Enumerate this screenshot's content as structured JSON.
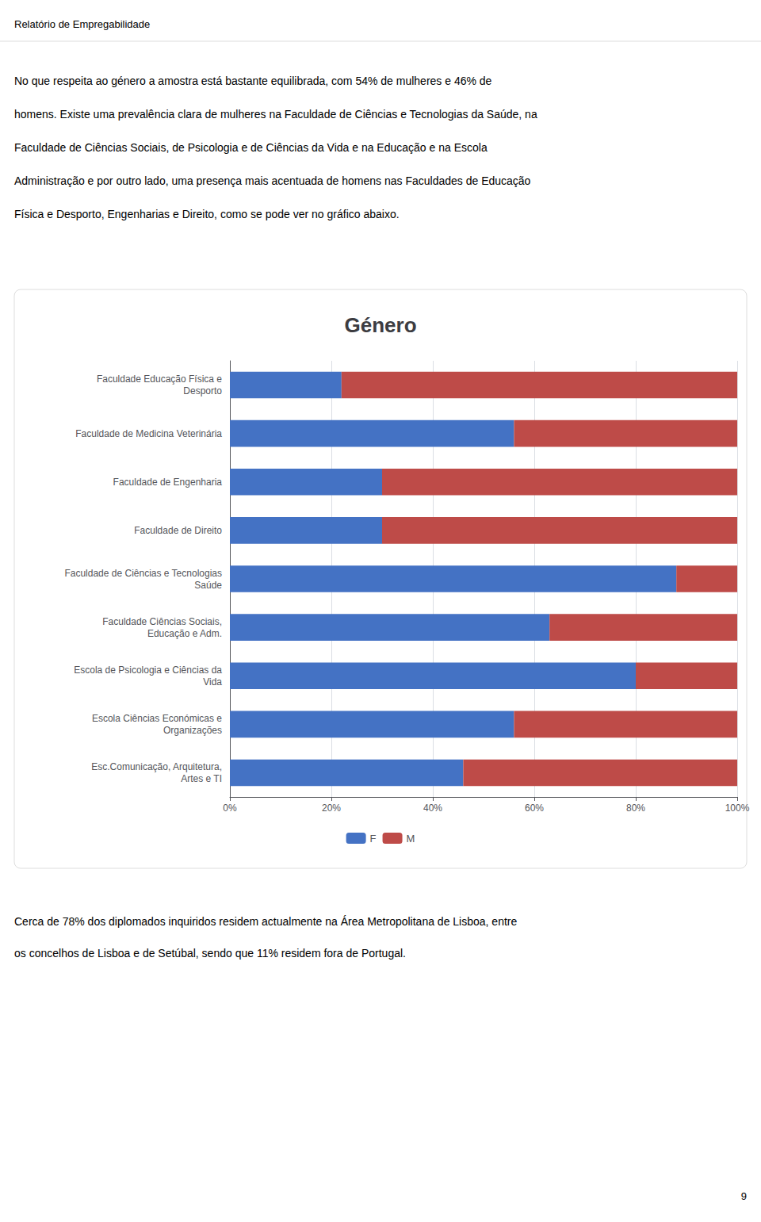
{
  "chart_data": {
    "type": "bar",
    "orientation": "horizontal",
    "stacked": true,
    "title": "Género",
    "categories": [
      "Faculdade Educação Física e\nDesporto",
      "Faculdade de Medicina Veterinária",
      "Faculdade de Engenharia",
      "Faculdade de Direito",
      "Faculdade de Ciências e Tecnologias\nSaúde",
      "Faculdade Ciências Sociais,\nEducação e Adm.",
      "Escola de Psicologia e Ciências da\nVida",
      "Escola Ciências Económicas e\nOrganizações",
      "Esc.Comunicação, Arquitetura,\nArtes e TI"
    ],
    "series": [
      {
        "name": "F",
        "color": "#4472C4",
        "values": [
          0.22,
          0.56,
          0.3,
          0.3,
          0.88,
          0.63,
          0.8,
          0.56,
          0.46
        ]
      },
      {
        "name": "M",
        "color": "#BE4B48",
        "values": [
          0.78,
          0.44,
          0.7,
          0.7,
          0.12,
          0.37,
          0.2,
          0.44,
          0.54
        ]
      }
    ],
    "xlim": [
      0,
      1.0
    ],
    "xticks": [
      {
        "value": 0,
        "label": "0%"
      },
      {
        "value": 0.2,
        "label": "20%"
      },
      {
        "value": 0.4,
        "label": "40%"
      },
      {
        "value": 0.6,
        "label": "60%"
      },
      {
        "value": 0.8,
        "label": "80%"
      },
      {
        "value": 1.0,
        "label": "100%"
      }
    ],
    "grid": true,
    "legend": "bottom",
    "annotations": [
      "Relatório de Empregabilidade",
      "No que respeita ao género a amostra está bastante equilibrada, com 54% de mulheres e 46% de",
      "homens. Existe uma prevalência clara de mulheres na Faculdade de Ciências e Tecnologias da Saúde, na",
      "Faculdade de Ciências Sociais, de Psicologia e de Ciências da Vida e na Educação e na Escola",
      "Administração e por outro lado, uma presença mais acentuada de homens nas Faculdades de Educação",
      "Física e Desporto, Engenharias e Direito, como se pode ver no gráfico abaixo.",
      "Cerca de 78% dos diplomados inquiridos residem actualmente na Área Metropolitana de Lisboa, entre",
      "os concelhos de Lisboa e de Setúbal, sendo que 11% residem fora de Portugal.",
      "9"
    ]
  }
}
